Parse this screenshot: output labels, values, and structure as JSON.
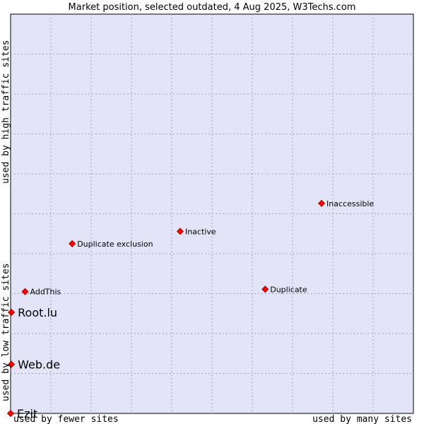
{
  "chart_data": {
    "type": "scatter",
    "title": "Market position, selected outdated, 4 Aug 2025, W3Techs.com",
    "xlabel_left": "used by fewer sites",
    "xlabel_right": "used by many sites",
    "ylabel_low": "used by low traffic sites",
    "ylabel_high": "used by high traffic sites",
    "xlim": [
      0,
      100
    ],
    "ylim": [
      0,
      100
    ],
    "grid": true,
    "marker_color": "#ff0000",
    "background_color": "#e4e4f8",
    "points": [
      {
        "label": "Inaccessible",
        "x": 77.2,
        "y": 52.6,
        "size": "small"
      },
      {
        "label": "Inactive",
        "x": 42.1,
        "y": 45.6,
        "size": "small"
      },
      {
        "label": "Duplicate exclusion",
        "x": 15.3,
        "y": 42.5,
        "size": "small"
      },
      {
        "label": "AddThis",
        "x": 3.6,
        "y": 30.5,
        "size": "small"
      },
      {
        "label": "Duplicate",
        "x": 63.2,
        "y": 31.1,
        "size": "small"
      },
      {
        "label": "Root.lu",
        "x": 0.2,
        "y": 25.3,
        "size": "large"
      },
      {
        "label": "Web.de",
        "x": 0.2,
        "y": 12.3,
        "size": "large"
      },
      {
        "label": "Ezit",
        "x": 0.0,
        "y": 0.0,
        "size": "large"
      }
    ]
  }
}
